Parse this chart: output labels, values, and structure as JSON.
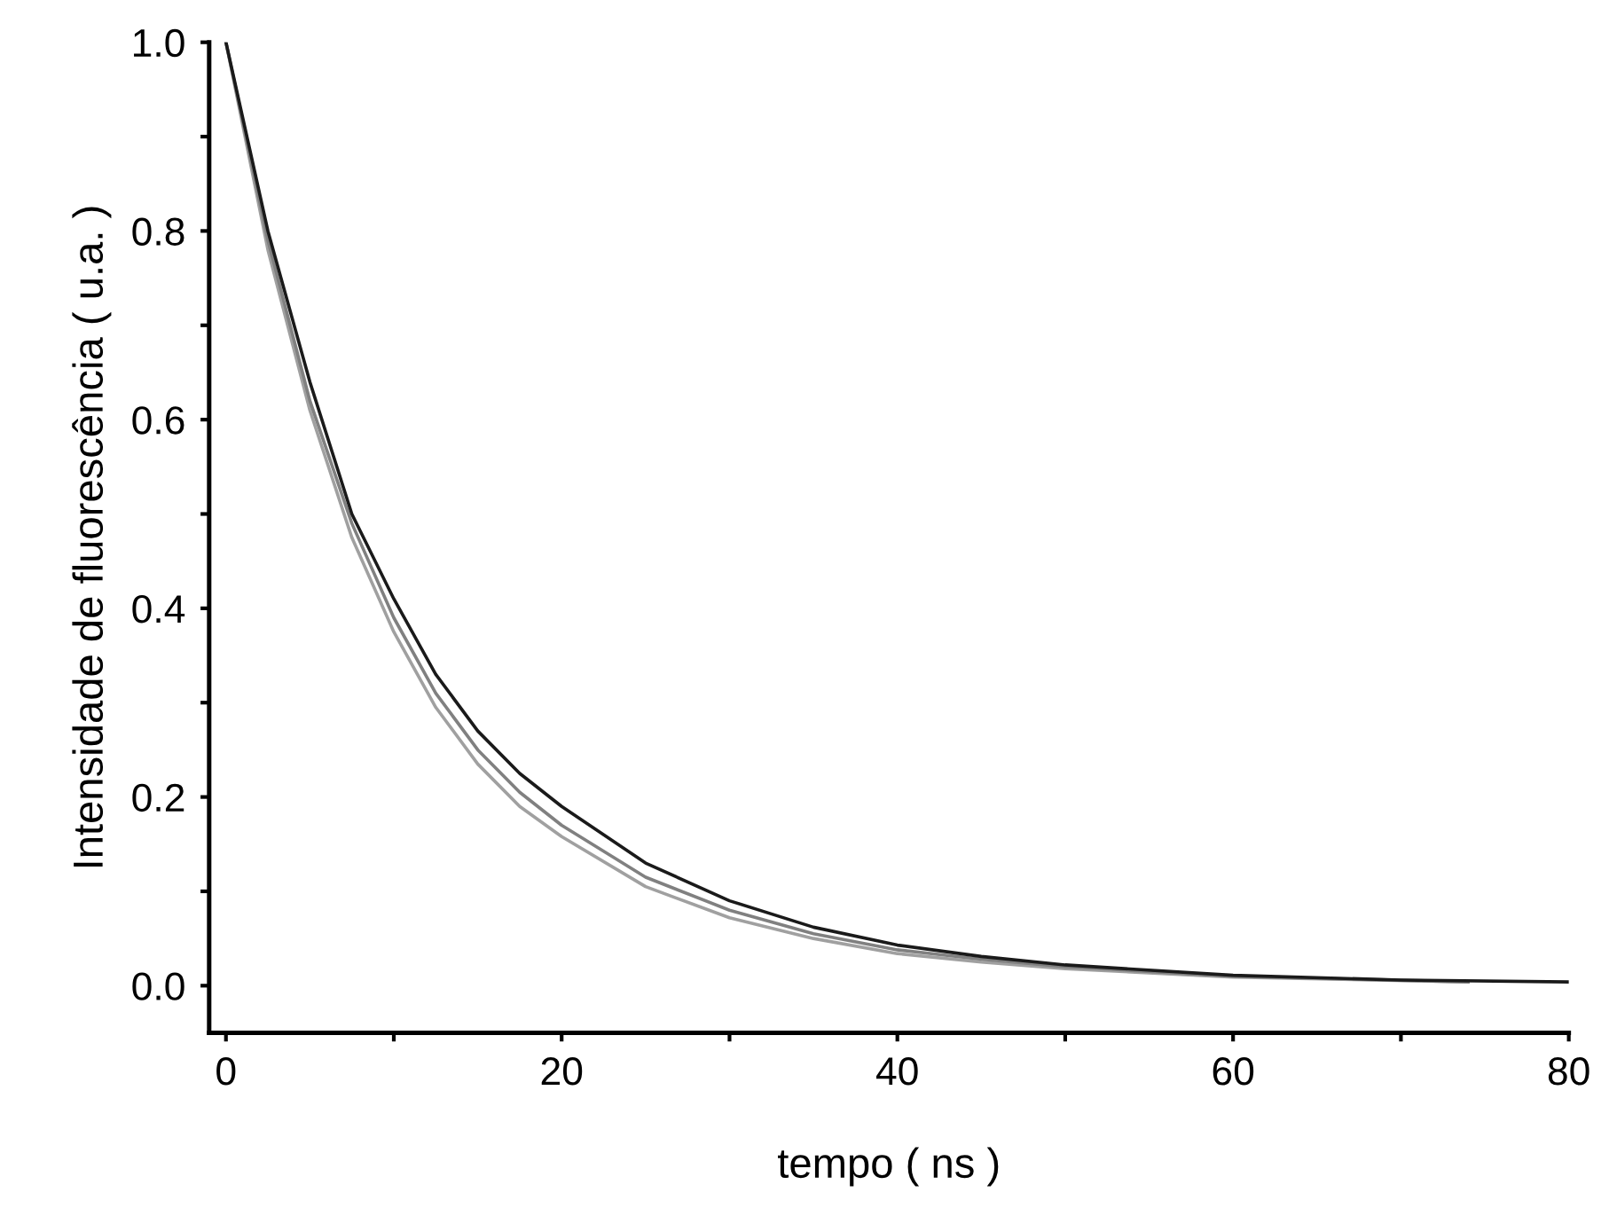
{
  "chart_data": {
    "type": "line",
    "xlabel": "tempo ( ns )",
    "ylabel": "Intensidade de fluorescência ( u.a. )",
    "xlim": [
      -1,
      80
    ],
    "ylim": [
      -0.05,
      1.0
    ],
    "xticks": [
      0,
      {
        "value": 10,
        "label": null
      },
      20,
      {
        "value": 30,
        "label": null
      },
      40,
      {
        "value": 50,
        "label": null
      },
      60,
      {
        "value": 70,
        "label": null
      },
      80
    ],
    "yticks": [
      "0.0",
      {
        "value": 0.1,
        "label": null
      },
      {
        "value": 0.2,
        "label": "0.2"
      },
      {
        "value": 0.3,
        "label": null
      },
      {
        "value": 0.4,
        "label": "0.4"
      },
      {
        "value": 0.5,
        "label": null
      },
      {
        "value": 0.6,
        "label": "0.6"
      },
      {
        "value": 0.7,
        "label": null
      },
      {
        "value": 0.8,
        "label": "0.8"
      },
      {
        "value": 0.9,
        "label": null
      },
      {
        "value": 1.0,
        "label": "1.0"
      }
    ],
    "grid": false,
    "marker": "none",
    "line_style": "solid",
    "series": [
      {
        "color": "#a0a0a0",
        "x": [
          0,
          2.5,
          5,
          7.5,
          10,
          12.5,
          15,
          17.5,
          20,
          25,
          30,
          35,
          40,
          45,
          50,
          60,
          74
        ],
        "values": [
          1.0,
          0.78,
          0.61,
          0.475,
          0.375,
          0.295,
          0.235,
          0.19,
          0.158,
          0.105,
          0.072,
          0.05,
          0.034,
          0.025,
          0.018,
          0.009,
          0.004
        ]
      },
      {
        "color": "#808080",
        "x": [
          0,
          2.5,
          5,
          7.5,
          10,
          12.5,
          15,
          17.5,
          20,
          25,
          30,
          35,
          40,
          45,
          50,
          60,
          74
        ],
        "values": [
          1.0,
          0.79,
          0.62,
          0.49,
          0.39,
          0.31,
          0.25,
          0.205,
          0.17,
          0.115,
          0.08,
          0.055,
          0.038,
          0.028,
          0.02,
          0.01,
          0.004
        ]
      },
      {
        "color": "#1a1a1a",
        "x": [
          0,
          2.5,
          5,
          7.5,
          10,
          12.5,
          15,
          17.5,
          20,
          25,
          30,
          35,
          40,
          45,
          50,
          60,
          70,
          80
        ],
        "values": [
          1.0,
          0.8,
          0.64,
          0.5,
          0.41,
          0.33,
          0.27,
          0.225,
          0.19,
          0.13,
          0.09,
          0.062,
          0.043,
          0.031,
          0.022,
          0.011,
          0.006,
          0.004
        ]
      }
    ]
  }
}
